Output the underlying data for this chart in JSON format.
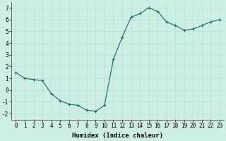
{
  "x": [
    0,
    1,
    2,
    3,
    4,
    5,
    6,
    7,
    8,
    9,
    10,
    11,
    12,
    13,
    14,
    15,
    16,
    17,
    18,
    19,
    20,
    21,
    22,
    23
  ],
  "y": [
    1.5,
    1.0,
    0.9,
    0.8,
    -0.3,
    -0.9,
    -1.2,
    -1.3,
    -1.7,
    -1.8,
    -1.3,
    2.6,
    4.5,
    6.2,
    6.5,
    7.0,
    6.7,
    5.8,
    5.5,
    5.1,
    5.2,
    5.5,
    5.8,
    6.0
  ],
  "line_color": "#1a6b5a",
  "marker": "+",
  "marker_size": 3,
  "xlabel": "Humidex (Indice chaleur)",
  "xlim": [
    -0.5,
    23.5
  ],
  "ylim": [
    -2.5,
    7.5
  ],
  "yticks": [
    -2,
    -1,
    0,
    1,
    2,
    3,
    4,
    5,
    6,
    7
  ],
  "xticks": [
    0,
    1,
    2,
    3,
    4,
    5,
    6,
    7,
    8,
    9,
    10,
    11,
    12,
    13,
    14,
    15,
    16,
    17,
    18,
    19,
    20,
    21,
    22,
    23
  ],
  "grid_color": "#b8ddd4",
  "background_color": "#cceee4",
  "axis_color": "#505050",
  "tick_fontsize": 5.5,
  "label_fontsize": 6.5
}
